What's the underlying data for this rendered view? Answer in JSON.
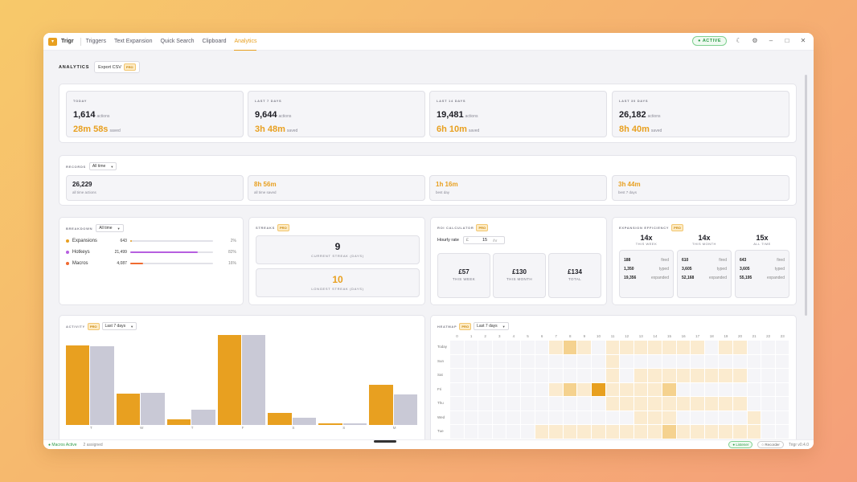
{
  "titlebar": {
    "app_name": "Trigr",
    "tabs": [
      "Triggers",
      "Text Expansion",
      "Quick Search",
      "Clipboard",
      "Analytics"
    ],
    "active_tab": "Analytics",
    "status_pill": "● ACTIVE"
  },
  "header": {
    "title": "ANALYTICS",
    "export_label": "Export CSV",
    "pro": "PRO"
  },
  "summary": [
    {
      "label": "TODAY",
      "actions": "1,614",
      "actions_unit": "actions",
      "saved": "28m 58s",
      "saved_unit": "saved"
    },
    {
      "label": "LAST 7 DAYS",
      "actions": "9,644",
      "actions_unit": "actions",
      "saved": "3h 48m",
      "saved_unit": "saved"
    },
    {
      "label": "LAST 14 DAYS",
      "actions": "19,481",
      "actions_unit": "actions",
      "saved": "6h 10m",
      "saved_unit": "saved"
    },
    {
      "label": "LAST 30 DAYS",
      "actions": "26,182",
      "actions_unit": "actions",
      "saved": "8h 40m",
      "saved_unit": "saved"
    }
  ],
  "records": {
    "label": "RECORDS",
    "filter": "All time",
    "cards": [
      {
        "value": "26,229",
        "sub": "all time actions",
        "highlight": false
      },
      {
        "value": "8h 56m",
        "sub": "all time saved",
        "highlight": true
      },
      {
        "value": "1h 16m",
        "sub": "best day",
        "highlight": true
      },
      {
        "value": "3h 44m",
        "sub": "best 7 days",
        "highlight": true
      }
    ]
  },
  "breakdown": {
    "label": "BREAKDOWN",
    "filter": "All time",
    "rows": [
      {
        "name": "Expansions",
        "value": "643",
        "pct_text": "2%",
        "pct": 0.02,
        "color": "#e8a020"
      },
      {
        "name": "Hotkeys",
        "value": "21,499",
        "pct_text": "82%",
        "pct": 0.82,
        "color": "#b65fe0"
      },
      {
        "name": "Macros",
        "value": "4,087",
        "pct_text": "16%",
        "pct": 0.16,
        "color": "#f06a30"
      }
    ]
  },
  "streaks": {
    "label": "STREAKS",
    "pro": "PRO",
    "current": {
      "value": "9",
      "label": "CURRENT STREAK (DAYS)"
    },
    "longest": {
      "value": "10",
      "label": "LONGEST STREAK (DAYS)"
    }
  },
  "roi": {
    "label": "ROI CALCULATOR",
    "pro": "PRO",
    "rate_label": "Hourly rate",
    "currency": "£",
    "rate": "15",
    "per": "/hr",
    "cards": [
      {
        "value": "£57",
        "label": "THIS WEEK"
      },
      {
        "value": "£130",
        "label": "THIS MONTH"
      },
      {
        "value": "£134",
        "label": "TOTAL"
      }
    ]
  },
  "efficiency": {
    "label": "EXPANSION EFFICIENCY",
    "pro": "PRO",
    "cols": [
      {
        "big": "14x",
        "sub": "THIS WEEK",
        "fired": "188",
        "typed": "1,350",
        "expanded": "19,356"
      },
      {
        "big": "14x",
        "sub": "THIS MONTH",
        "fired": "610",
        "typed": "3,605",
        "expanded": "52,168"
      },
      {
        "big": "15x",
        "sub": "ALL TIME",
        "fired": "643",
        "typed": "3,605",
        "expanded": "55,195"
      }
    ],
    "fired_label": "fired",
    "typed_label": "typed",
    "expanded_label": "expanded"
  },
  "activity": {
    "label": "ACTIVITY",
    "pro": "PRO",
    "filter": "Last 7 days"
  },
  "chart_data": {
    "type": "bar",
    "categories": [
      "T",
      "W",
      "T",
      "F",
      "S",
      "S",
      "M"
    ],
    "series": [
      {
        "values": [
          97,
          38,
          7,
          110,
          15,
          2,
          49
        ],
        "color": "#e8a020"
      },
      {
        "values": [
          96,
          39,
          19,
          110,
          9,
          2,
          37
        ],
        "color": "#c9c9d6"
      }
    ],
    "ylim": [
      0,
      110
    ]
  },
  "heatmap": {
    "label": "HEATMAP",
    "pro": "PRO",
    "filter": "Last 7 days",
    "hours": [
      "0",
      "1",
      "2",
      "3",
      "4",
      "5",
      "6",
      "7",
      "8",
      "9",
      "10",
      "11",
      "12",
      "13",
      "14",
      "15",
      "16",
      "17",
      "18",
      "19",
      "20",
      "21",
      "22",
      "23"
    ],
    "days": [
      "Today",
      "Sun",
      "Sat",
      "Fri",
      "Thu",
      "Wed",
      "Tue"
    ],
    "cells": [
      [
        0,
        0,
        0,
        0,
        0,
        0,
        0,
        1,
        2,
        1,
        0,
        1,
        1,
        1,
        1,
        1,
        1,
        1,
        0,
        1,
        1,
        0,
        0,
        0
      ],
      [
        0,
        0,
        0,
        0,
        0,
        0,
        0,
        0,
        0,
        0,
        0,
        1,
        0,
        0,
        0,
        0,
        0,
        0,
        0,
        0,
        0,
        0,
        0,
        0
      ],
      [
        0,
        0,
        0,
        0,
        0,
        0,
        0,
        0,
        0,
        0,
        0,
        1,
        0,
        1,
        1,
        1,
        1,
        1,
        1,
        1,
        1,
        0,
        0,
        0
      ],
      [
        0,
        0,
        0,
        0,
        0,
        0,
        0,
        1,
        2,
        1,
        3,
        1,
        1,
        1,
        1,
        2,
        0,
        0,
        0,
        0,
        0,
        0,
        0,
        0
      ],
      [
        0,
        0,
        0,
        0,
        0,
        0,
        0,
        0,
        0,
        0,
        0,
        1,
        1,
        1,
        1,
        1,
        1,
        1,
        1,
        1,
        1,
        0,
        0,
        0
      ],
      [
        0,
        0,
        0,
        0,
        0,
        0,
        0,
        0,
        0,
        0,
        0,
        0,
        0,
        1,
        1,
        1,
        0,
        0,
        0,
        0,
        0,
        1,
        0,
        0
      ],
      [
        0,
        0,
        0,
        0,
        0,
        0,
        1,
        1,
        1,
        1,
        1,
        1,
        1,
        1,
        1,
        2,
        1,
        1,
        1,
        1,
        1,
        1,
        0,
        0
      ]
    ]
  },
  "statusbar": {
    "left1": "● Macros Active",
    "left2": "2 assigned",
    "pill1": "● Listener",
    "pill2": "○ Recorder",
    "version": "Trigr v0.4.0"
  }
}
